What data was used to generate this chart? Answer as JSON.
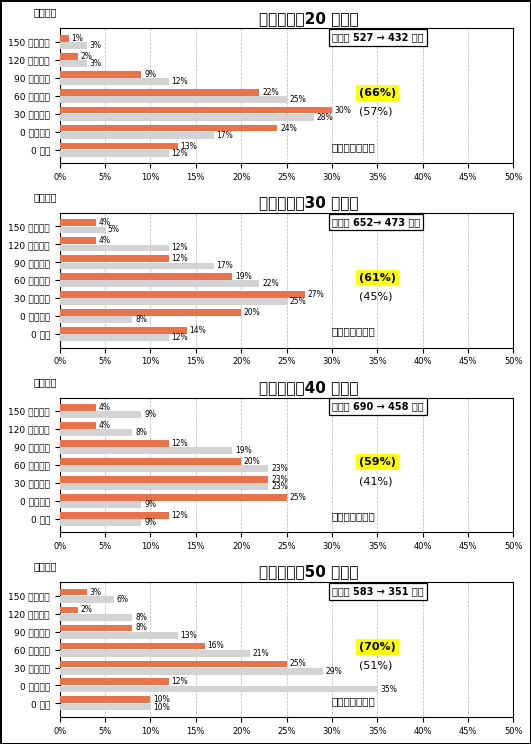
{
  "panels": [
    {
      "title": "一般女子（20 歳代）",
      "categories": [
        "150 万円以上",
        "120 万円以上",
        "90 万円以上",
        "60 万円以上",
        "30 万円以上",
        "0 万円超え",
        "0 万円"
      ],
      "h19": [
        1,
        2,
        9,
        22,
        30,
        24,
        13
      ],
      "h23": [
        3,
        3,
        12,
        25,
        28,
        17,
        12
      ],
      "median_text": "中位数 527 → 432 千円",
      "pct_h19": "(66%)",
      "pct_h23": "(57%)",
      "pct_label": "年代内人数割合"
    },
    {
      "title": "一般女子（30 歳代）",
      "categories": [
        "150 万円以上",
        "120 万円以上",
        "90 万円以上",
        "60 万円以上",
        "30 万円以上",
        "0 万円超え",
        "0 万円"
      ],
      "h19": [
        4,
        4,
        12,
        19,
        27,
        20,
        14
      ],
      "h23": [
        5,
        12,
        17,
        22,
        25,
        8,
        12
      ],
      "median_text": "中位数 652→ 473 千円",
      "pct_h19": "(61%)",
      "pct_h23": "(45%)",
      "pct_label": "年代内人数割合"
    },
    {
      "title": "一般女子（40 歳代）",
      "categories": [
        "150 万円以上",
        "120 万円以上",
        "90 万円以上",
        "60 万円以上",
        "30 万円以上",
        "0 万円超え",
        "0 万円"
      ],
      "h19": [
        4,
        4,
        12,
        20,
        23,
        25,
        12
      ],
      "h23": [
        9,
        8,
        19,
        23,
        23,
        9,
        9
      ],
      "median_text": "中位数 690 → 458 千円",
      "pct_h19": "(59%)",
      "pct_h23": "(41%)",
      "pct_label": "年代内人数割合"
    },
    {
      "title": "一般女子（50 歳代）",
      "categories": [
        "150 万円以上",
        "120 万円以上",
        "90 万円以上",
        "60 万円以上",
        "30 万円以上",
        "0 万円超え",
        "0 万円"
      ],
      "h19": [
        3,
        2,
        8,
        16,
        25,
        12,
        10
      ],
      "h23": [
        6,
        8,
        13,
        21,
        29,
        35,
        10
      ],
      "median_text": "中位数 583 → 351 千円",
      "pct_h19": "(70%)",
      "pct_h23": "(51%)",
      "pct_label": "年代内人数割合"
    }
  ],
  "color_h19": "#E8734A",
  "color_h23": "#D3D3D3",
  "bar_height": 0.38,
  "xlim": [
    0,
    50
  ],
  "xticks": [
    0,
    5,
    10,
    15,
    20,
    25,
    30,
    35,
    40,
    45,
    50
  ],
  "background": "#FFFFFF"
}
